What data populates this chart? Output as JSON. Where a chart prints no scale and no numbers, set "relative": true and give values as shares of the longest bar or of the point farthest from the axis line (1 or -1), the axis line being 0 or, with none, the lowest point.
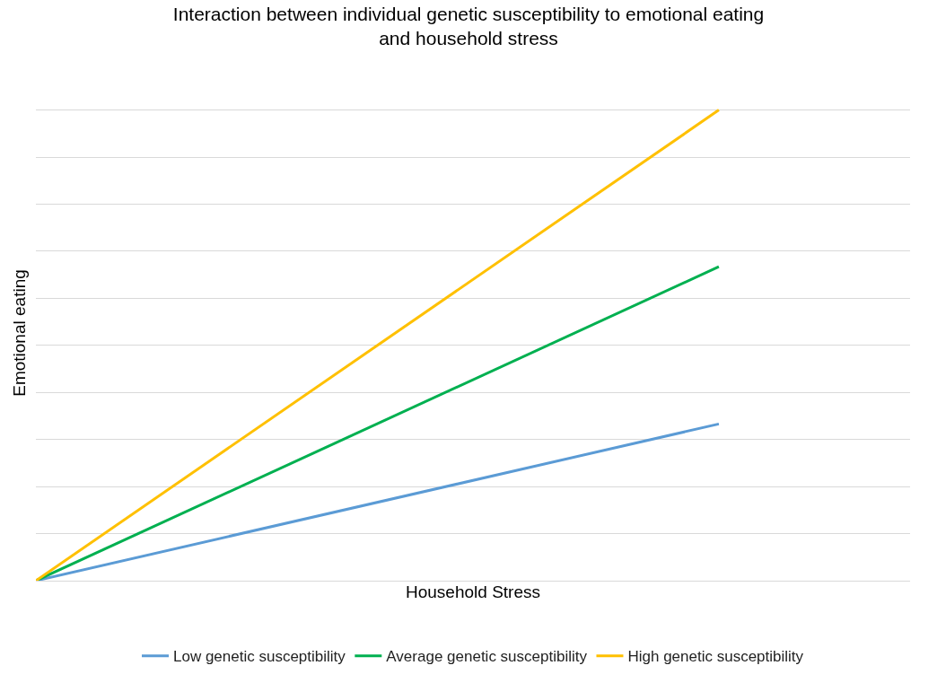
{
  "chart_data": {
    "type": "line",
    "title": "Interaction between individual genetic susceptibility to emotional eating\nand household stress",
    "xlabel": "Household Stress",
    "ylabel": "Emotional eating",
    "categories": [
      null,
      null
    ],
    "relative": true,
    "grid": "y",
    "legend": "bottom",
    "marker": "none",
    "line_style": "solid",
    "series": [
      {
        "name": "Low genetic susceptibility",
        "color": "#5b9bd5",
        "values": [
          0,
          0.333
        ]
      },
      {
        "name": "Average genetic susceptibility",
        "color": "#00b050",
        "values": [
          0,
          0.667
        ]
      },
      {
        "name": "High genetic susceptibility",
        "color": "#ffc000",
        "values": [
          0,
          1
        ]
      }
    ]
  }
}
